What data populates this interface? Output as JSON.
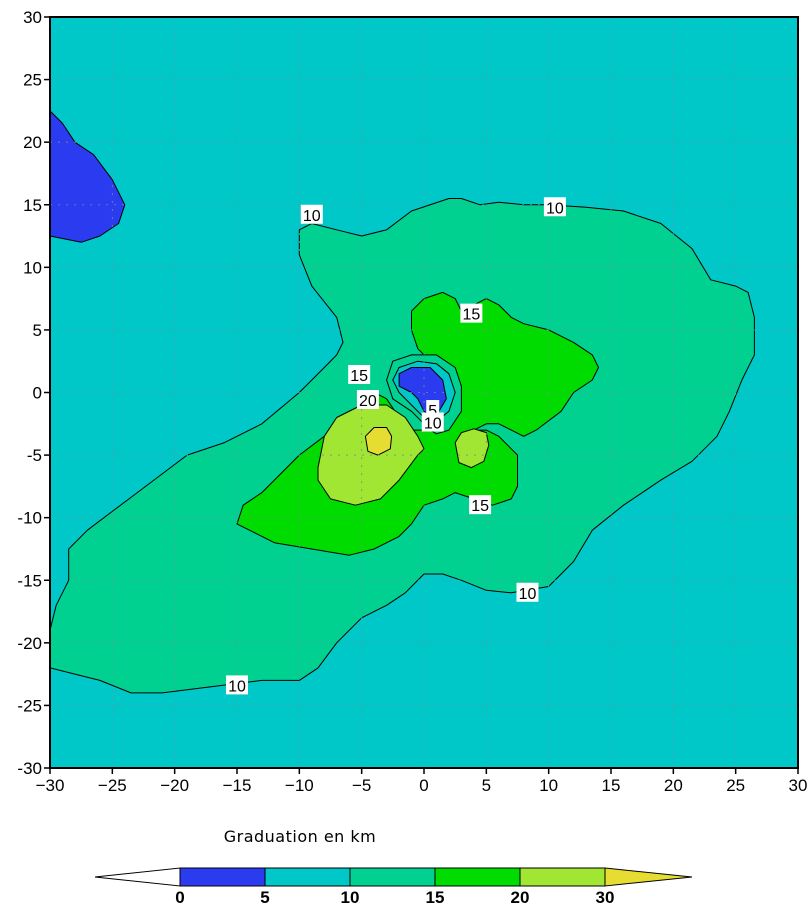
{
  "chart_data": {
    "type": "contour",
    "title": "",
    "xlabel": "",
    "ylabel": "",
    "xlim": [
      -30,
      30
    ],
    "ylim": [
      -30,
      30
    ],
    "x_ticks": [
      -30,
      -25,
      -20,
      -15,
      -10,
      -5,
      0,
      5,
      10,
      15,
      20,
      25,
      30
    ],
    "y_ticks": [
      -30,
      -25,
      -20,
      -15,
      -10,
      -5,
      0,
      5,
      10,
      15,
      20,
      25,
      30
    ],
    "grid": true,
    "levels": [
      0,
      5,
      10,
      15,
      20,
      30
    ],
    "level_colors": [
      "#2b3cf0",
      "#00c8c8",
      "#00d090",
      "#00dc00",
      "#a0e632",
      "#e6dc32"
    ],
    "colorbar_title": "Graduation en km",
    "colorbar_ticks": [
      "0",
      "5",
      "10",
      "15",
      "20",
      "30"
    ],
    "colorbar_placement": "bottom",
    "background_level_color": "#00c8c8",
    "regions": [
      {
        "level": "0-5",
        "color": "#2b3cf0",
        "outline": [
          [
            -30,
            22.5
          ],
          [
            -29,
            21.5
          ],
          [
            -28,
            20
          ],
          [
            -26.5,
            19
          ],
          [
            -25,
            17
          ],
          [
            -24,
            15
          ],
          [
            -24.5,
            13.5
          ],
          [
            -26,
            12.5
          ],
          [
            -27.5,
            12
          ],
          [
            -30,
            12.5
          ]
        ]
      },
      {
        "level": "10-15",
        "color": "#00d090",
        "outline": [
          [
            -30,
            -19
          ],
          [
            -29.5,
            -17
          ],
          [
            -28.5,
            -15
          ],
          [
            -28.5,
            -12.5
          ],
          [
            -27,
            -11
          ],
          [
            -25,
            -9.5
          ],
          [
            -23,
            -8
          ],
          [
            -21,
            -6.5
          ],
          [
            -19,
            -5
          ],
          [
            -16,
            -4
          ],
          [
            -13,
            -2.5
          ],
          [
            -10,
            0
          ],
          [
            -8,
            2
          ],
          [
            -7,
            3
          ],
          [
            -6.5,
            4
          ],
          [
            -7,
            6
          ],
          [
            -9,
            8.5
          ],
          [
            -10,
            11
          ],
          [
            -10,
            13
          ],
          [
            -9,
            13.5
          ],
          [
            -7,
            13
          ],
          [
            -5,
            12.5
          ],
          [
            -3,
            13
          ],
          [
            -1,
            14.5
          ],
          [
            2,
            15.5
          ],
          [
            3,
            15.5
          ],
          [
            4.5,
            15
          ],
          [
            6,
            15.2
          ],
          [
            8,
            15
          ],
          [
            10,
            15
          ],
          [
            13,
            14.8
          ],
          [
            16,
            14.5
          ],
          [
            19,
            13.5
          ],
          [
            21.5,
            11.5
          ],
          [
            23,
            9
          ],
          [
            25,
            8.5
          ],
          [
            26,
            8
          ],
          [
            26.5,
            6
          ],
          [
            26.5,
            3
          ],
          [
            25.5,
            1
          ],
          [
            24.5,
            -1.5
          ],
          [
            23.5,
            -3.5
          ],
          [
            21.5,
            -5.5
          ],
          [
            19,
            -7
          ],
          [
            16,
            -9
          ],
          [
            13.5,
            -11
          ],
          [
            12,
            -13.5
          ],
          [
            10,
            -15.5
          ],
          [
            7,
            -16
          ],
          [
            5,
            -15.8
          ],
          [
            3,
            -15
          ],
          [
            1.5,
            -14.5
          ],
          [
            0,
            -14.5
          ],
          [
            -1.5,
            -16
          ],
          [
            -3,
            -17
          ],
          [
            -5,
            -18
          ],
          [
            -7,
            -20
          ],
          [
            -8.5,
            -22
          ],
          [
            -10,
            -23
          ],
          [
            -13,
            -23
          ],
          [
            -17,
            -23.5
          ],
          [
            -21,
            -24
          ],
          [
            -23.5,
            -24
          ],
          [
            -26,
            -23
          ],
          [
            -28,
            -22.5
          ],
          [
            -30,
            -22
          ]
        ]
      },
      {
        "level": "15-20",
        "color": "#00dc00",
        "outline": [
          [
            -15,
            -10.5
          ],
          [
            -14.5,
            -9
          ],
          [
            -13,
            -8
          ],
          [
            -12,
            -7
          ],
          [
            -10,
            -5
          ],
          [
            -8,
            -3.5
          ],
          [
            -6,
            -2.5
          ],
          [
            -5,
            -1.5
          ],
          [
            -4,
            0
          ],
          [
            -3,
            -0.5
          ],
          [
            -2,
            -2
          ],
          [
            -1,
            -3
          ],
          [
            0,
            -3
          ],
          [
            1,
            -2
          ],
          [
            2,
            -1
          ],
          [
            2.5,
            0
          ],
          [
            1,
            2
          ],
          [
            -0.5,
            3.5
          ],
          [
            -1,
            5
          ],
          [
            -1,
            6.5
          ],
          [
            0,
            7.5
          ],
          [
            1.5,
            8
          ],
          [
            2.5,
            7.5
          ],
          [
            3,
            6.5
          ],
          [
            4,
            7
          ],
          [
            5,
            7.5
          ],
          [
            6,
            7
          ],
          [
            7,
            6
          ],
          [
            8,
            5.5
          ],
          [
            10,
            5
          ],
          [
            12,
            4
          ],
          [
            13.5,
            3
          ],
          [
            14,
            2
          ],
          [
            13.5,
            1
          ],
          [
            12,
            0
          ],
          [
            11,
            -1.5
          ],
          [
            9,
            -3
          ],
          [
            8,
            -3.5
          ],
          [
            7,
            -3
          ],
          [
            6,
            -2.5
          ],
          [
            5,
            -2.5
          ],
          [
            4,
            -3
          ],
          [
            5,
            -3
          ],
          [
            6,
            -3.5
          ],
          [
            7.5,
            -5
          ],
          [
            7.5,
            -7.5
          ],
          [
            7,
            -8.5
          ],
          [
            5.5,
            -9
          ],
          [
            4,
            -8.5
          ],
          [
            2.5,
            -8
          ],
          [
            1.5,
            -8.5
          ],
          [
            0,
            -9
          ],
          [
            -1,
            -10.5
          ],
          [
            -2,
            -11.5
          ],
          [
            -4,
            -12.5
          ],
          [
            -6,
            -13
          ],
          [
            -9,
            -12.5
          ],
          [
            -12,
            -12
          ],
          [
            -14,
            -11
          ]
        ]
      },
      {
        "level": "10-15",
        "color": "#00d090",
        "outline": [
          [
            -2.5,
            2.5
          ],
          [
            -1,
            3
          ],
          [
            1,
            3
          ],
          [
            2.5,
            2
          ],
          [
            3,
            0.5
          ],
          [
            3,
            -1.5
          ],
          [
            2,
            -3
          ],
          [
            1,
            -3.3
          ],
          [
            0.5,
            -3
          ],
          [
            0,
            -2.5
          ],
          [
            -1,
            -1.5
          ],
          [
            -2.5,
            -0.5
          ],
          [
            -3,
            1
          ]
        ]
      },
      {
        "level": "5-10",
        "color": "#00c8c8",
        "outline": [
          [
            -2,
            2
          ],
          [
            -0.5,
            2.5
          ],
          [
            1,
            2.3
          ],
          [
            2,
            1.5
          ],
          [
            2.5,
            0
          ],
          [
            2,
            -1.5
          ],
          [
            1,
            -2.3
          ],
          [
            0.5,
            -2.2
          ],
          [
            0,
            -2
          ],
          [
            -1,
            -1
          ],
          [
            -2,
            0
          ],
          [
            -2.5,
            1
          ]
        ]
      },
      {
        "level": "0-5",
        "color": "#2b3cf0",
        "outline": [
          [
            -2,
            1.5
          ],
          [
            -1,
            2
          ],
          [
            0.5,
            2
          ],
          [
            1.5,
            1
          ],
          [
            1.8,
            -0.5
          ],
          [
            1.2,
            -1.5
          ],
          [
            0.5,
            -1.8
          ],
          [
            0,
            -1.5
          ],
          [
            -0.5,
            -0.5
          ],
          [
            -1,
            0
          ],
          [
            -2,
            0.5
          ]
        ]
      },
      {
        "level": "20-30",
        "color": "#a0e632",
        "outline": [
          [
            -8.5,
            -6
          ],
          [
            -8.5,
            -7
          ],
          [
            -7.5,
            -8.5
          ],
          [
            -5.5,
            -9
          ],
          [
            -3.5,
            -8.5
          ],
          [
            -2,
            -7
          ],
          [
            -0.5,
            -5
          ],
          [
            0,
            -4.5
          ],
          [
            -0.5,
            -3.5
          ],
          [
            -1.5,
            -2
          ],
          [
            -3,
            -1
          ],
          [
            -5,
            -1
          ],
          [
            -7,
            -2
          ],
          [
            -8,
            -3.5
          ]
        ]
      },
      {
        "level": "20-30",
        "color": "#a0e632",
        "outline": [
          [
            2.5,
            -4
          ],
          [
            3,
            -3.2
          ],
          [
            4,
            -2.9
          ],
          [
            5,
            -3.2
          ],
          [
            5.2,
            -4.2
          ],
          [
            4.8,
            -5.5
          ],
          [
            3.8,
            -6
          ],
          [
            2.8,
            -5.6
          ]
        ]
      },
      {
        "level": "30+",
        "color": "#e6dc32",
        "outline": [
          [
            -4.7,
            -3.5
          ],
          [
            -4,
            -2.8
          ],
          [
            -3,
            -2.8
          ],
          [
            -2.6,
            -3.5
          ],
          [
            -2.7,
            -4.5
          ],
          [
            -3.7,
            -5
          ],
          [
            -4.5,
            -4.7
          ]
        ]
      }
    ],
    "contour_labels": [
      {
        "text": "10",
        "x": -9,
        "y": 14.2
      },
      {
        "text": "10",
        "x": 10.5,
        "y": 14.8
      },
      {
        "text": "15",
        "x": 3.8,
        "y": 6.3
      },
      {
        "text": "15",
        "x": -5.2,
        "y": 1.4
      },
      {
        "text": "20",
        "x": -4.5,
        "y": -0.6
      },
      {
        "text": "5",
        "x": 0.7,
        "y": -1.4
      },
      {
        "text": "10",
        "x": 0.7,
        "y": -2.4
      },
      {
        "text": "15",
        "x": 4.5,
        "y": -9
      },
      {
        "text": "10",
        "x": 8.3,
        "y": -16
      },
      {
        "text": "10",
        "x": -15,
        "y": -23.4
      }
    ]
  }
}
